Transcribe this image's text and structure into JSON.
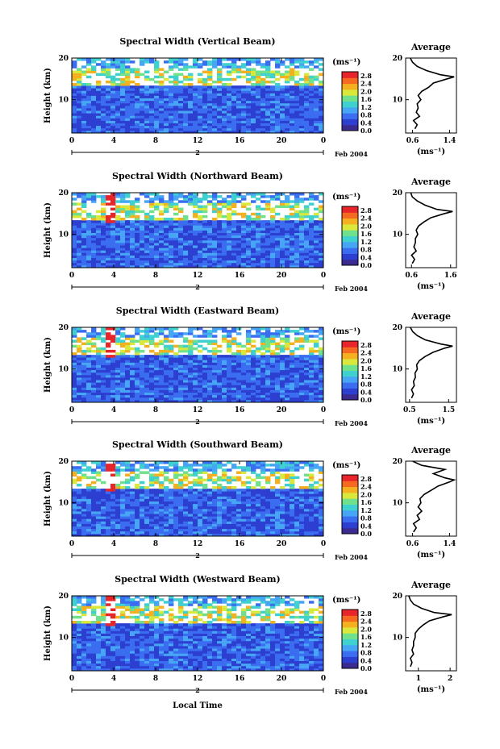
{
  "figure": {
    "xlabel": "Local Time",
    "date_label": "Feb 2004",
    "day_label": "2",
    "colorbar_unit": "(ms⁻¹)",
    "colorbar_ticks": [
      "0.0",
      "0.4",
      "0.8",
      "1.2",
      "1.6",
      "2.0",
      "2.4",
      "2.8"
    ],
    "colorscale": [
      "#3b2a8f",
      "#2d3fd0",
      "#3a6df0",
      "#46a6f5",
      "#3fd0d0",
      "#6fe08c",
      "#d9e83a",
      "#f5b020",
      "#f56a20",
      "#e8252a"
    ],
    "ylabel": "Height (km)",
    "avg_title": "Average",
    "avg_unit": "(ms⁻¹)"
  },
  "chart_data": [
    {
      "type": "heatmap",
      "title": "Spectral Width (Vertical Beam)",
      "x_ticks": [
        "0",
        "4",
        "8",
        "12",
        "16",
        "20",
        "0"
      ],
      "xlim": [
        0,
        24
      ],
      "y_ticks": [
        "10",
        "20"
      ],
      "ylim": [
        2,
        20
      ],
      "colorbar_range": [
        0,
        3.0
      ],
      "average": {
        "title": "Average",
        "x_ticks": [
          "0.6",
          "1.4"
        ],
        "xlim": [
          0.45,
          1.55
        ],
        "heights": [
          3,
          4,
          5,
          6,
          7,
          8,
          9,
          10,
          11,
          12,
          13,
          14,
          15,
          15.5,
          16,
          17,
          18,
          19,
          20
        ],
        "values": [
          0.65,
          0.7,
          0.62,
          0.75,
          0.68,
          0.72,
          0.7,
          0.78,
          0.72,
          0.8,
          0.95,
          1.05,
          1.35,
          1.5,
          1.2,
          0.9,
          0.7,
          0.6,
          0.55
        ]
      }
    },
    {
      "type": "heatmap",
      "title": "Spectral Width (Northward Beam)",
      "x_ticks": [
        "0",
        "4",
        "8",
        "12",
        "16",
        "20",
        "0"
      ],
      "xlim": [
        0,
        24
      ],
      "y_ticks": [
        "10",
        "20"
      ],
      "ylim": [
        2,
        20
      ],
      "colorbar_range": [
        0,
        3.0
      ],
      "average": {
        "title": "Average",
        "x_ticks": [
          "0.6",
          "1.6"
        ],
        "xlim": [
          0.45,
          1.75
        ],
        "heights": [
          3,
          4,
          5,
          6,
          7,
          8,
          9,
          10,
          11,
          12,
          13,
          14,
          15,
          15.5,
          16,
          17,
          18,
          19,
          20
        ],
        "values": [
          0.62,
          0.68,
          0.6,
          0.72,
          0.66,
          0.7,
          0.7,
          0.76,
          0.72,
          0.78,
          0.92,
          1.1,
          1.45,
          1.65,
          1.25,
          0.95,
          0.75,
          0.62,
          0.58
        ]
      }
    },
    {
      "type": "heatmap",
      "title": "Spectral Width (Eastward Beam)",
      "x_ticks": [
        "0",
        "4",
        "8",
        "12",
        "16",
        "20",
        "0"
      ],
      "xlim": [
        0,
        24
      ],
      "y_ticks": [
        "10",
        "20"
      ],
      "ylim": [
        2,
        20
      ],
      "colorbar_range": [
        0,
        3.0
      ],
      "average": {
        "title": "Average",
        "x_ticks": [
          "0.5",
          "1.5"
        ],
        "xlim": [
          0.4,
          1.7
        ],
        "heights": [
          3,
          4,
          5,
          6,
          7,
          8,
          9,
          10,
          11,
          12,
          13,
          14,
          15,
          15.5,
          16,
          17,
          18,
          19,
          20
        ],
        "values": [
          0.55,
          0.6,
          0.55,
          0.62,
          0.6,
          0.65,
          0.64,
          0.7,
          0.68,
          0.75,
          0.9,
          1.1,
          1.4,
          1.6,
          1.3,
          0.9,
          0.7,
          0.58,
          0.52
        ]
      }
    },
    {
      "type": "heatmap",
      "title": "Spectral Width (Southward Beam)",
      "x_ticks": [
        "0",
        "4",
        "8",
        "12",
        "16",
        "20",
        "0"
      ],
      "xlim": [
        0,
        24
      ],
      "y_ticks": [
        "10",
        "20"
      ],
      "ylim": [
        2,
        20
      ],
      "colorbar_range": [
        0,
        3.0
      ],
      "average": {
        "title": "Average",
        "x_ticks": [
          "0.6",
          "1.4"
        ],
        "xlim": [
          0.45,
          1.55
        ],
        "heights": [
          3,
          4,
          5,
          6,
          7,
          8,
          9,
          10,
          11,
          12,
          13,
          14,
          15,
          15.5,
          16,
          17,
          18,
          19,
          20
        ],
        "values": [
          0.62,
          0.68,
          0.62,
          0.75,
          0.7,
          0.8,
          0.72,
          0.78,
          0.76,
          0.85,
          1.0,
          1.15,
          1.4,
          1.5,
          1.3,
          1.05,
          1.3,
          0.8,
          0.6
        ]
      }
    },
    {
      "type": "heatmap",
      "title": "Spectral Width (Westward Beam)",
      "x_ticks": [
        "0",
        "4",
        "8",
        "12",
        "16",
        "20",
        "0"
      ],
      "xlim": [
        0,
        24
      ],
      "y_ticks": [
        "10",
        "20"
      ],
      "ylim": [
        2,
        20
      ],
      "colorbar_range": [
        0,
        3.0
      ],
      "average": {
        "title": "Average",
        "x_ticks": [
          "1",
          "2"
        ],
        "xlim": [
          0.6,
          2.2
        ],
        "heights": [
          3,
          4,
          5,
          6,
          7,
          8,
          9,
          10,
          11,
          12,
          13,
          14,
          15,
          15.5,
          16,
          17,
          18,
          19,
          20
        ],
        "values": [
          0.75,
          0.8,
          0.75,
          0.85,
          0.8,
          0.85,
          0.85,
          0.9,
          0.9,
          1.0,
          1.15,
          1.35,
          1.8,
          2.05,
          1.5,
          1.1,
          0.85,
          0.75,
          0.7
        ]
      }
    }
  ]
}
